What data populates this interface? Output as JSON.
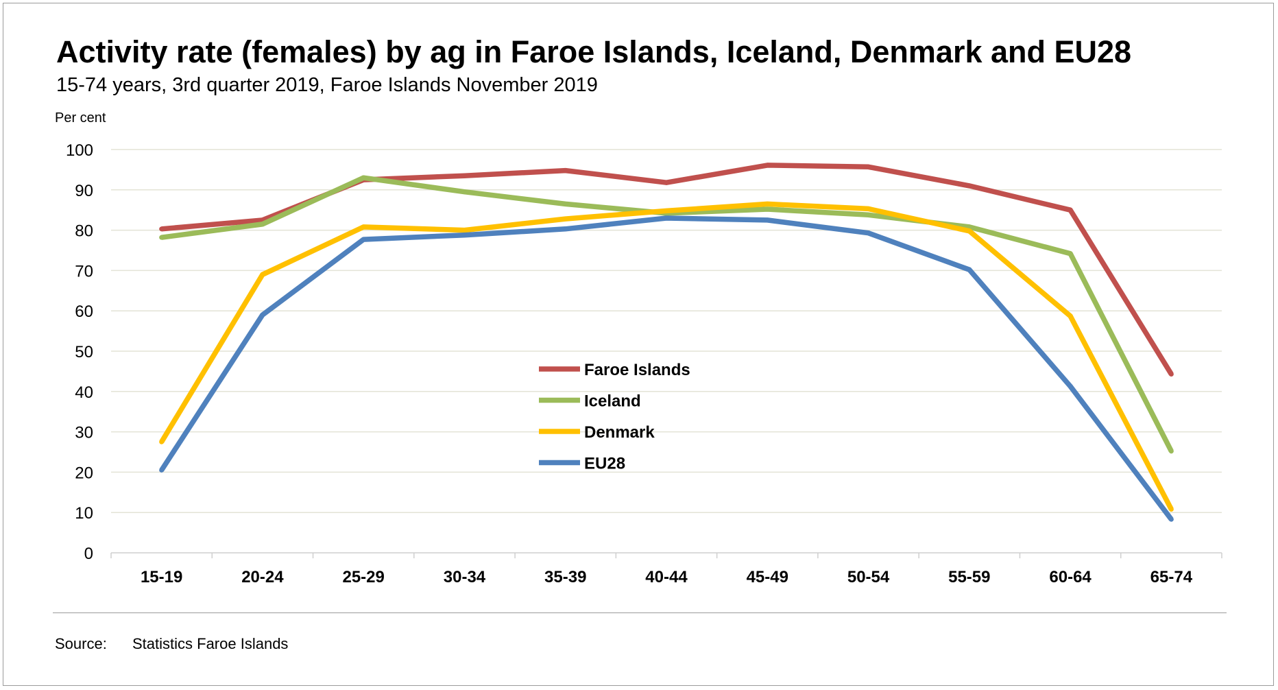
{
  "chart_data": {
    "type": "line",
    "title": "Activity rate (females) by ag in Faroe Islands, Iceland, Denmark and EU28",
    "subtitle": "15-74 years, 3rd quarter 2019, Faroe Islands November 2019",
    "ylabel": "Per cent",
    "xlabel": "",
    "ylim": [
      0,
      100
    ],
    "yticks": [
      0,
      10,
      20,
      30,
      40,
      50,
      60,
      70,
      80,
      90,
      100
    ],
    "grid": true,
    "legend_position": "center",
    "categories": [
      "15-19",
      "20-24",
      "25-29",
      "30-34",
      "35-39",
      "40-44",
      "45-49",
      "50-54",
      "55-59",
      "60-64",
      "65-74"
    ],
    "series": [
      {
        "name": "Faroe Islands",
        "color": "#C0504D",
        "values": [
          80.3,
          82.5,
          92.5,
          93.5,
          94.8,
          91.8,
          96.1,
          95.7,
          91.0,
          85.0,
          44.3
        ]
      },
      {
        "name": "Iceland",
        "color": "#9BBB59",
        "values": [
          78.2,
          81.5,
          93.0,
          89.5,
          86.5,
          84.2,
          85.2,
          83.8,
          80.8,
          74.2,
          25.2
        ]
      },
      {
        "name": "Denmark",
        "color": "#FFC000",
        "values": [
          27.5,
          69.0,
          80.8,
          80.0,
          82.8,
          84.8,
          86.5,
          85.3,
          79.8,
          58.7,
          10.8
        ]
      },
      {
        "name": "EU28",
        "color": "#4F81BD",
        "values": [
          20.5,
          59.0,
          77.7,
          78.8,
          80.3,
          83.0,
          82.5,
          79.3,
          70.2,
          41.3,
          8.3
        ]
      }
    ]
  },
  "footer": {
    "source_label": "Source:",
    "source_value": "Statistics Faroe Islands"
  }
}
